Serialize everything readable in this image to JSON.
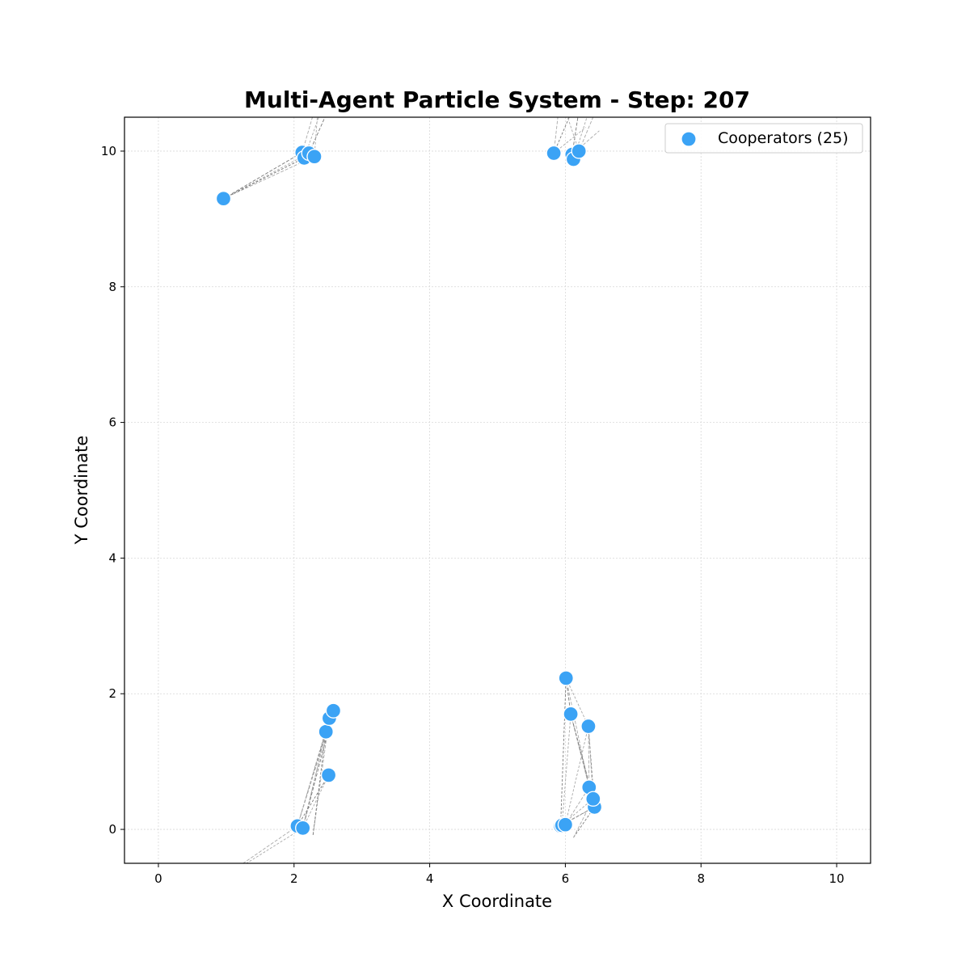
{
  "chart_data": {
    "type": "scatter",
    "title": "Multi-Agent Particle System - Step: 207",
    "xlabel": "X Coordinate",
    "ylabel": "Y Coordinate",
    "xlim": [
      -0.5,
      10.5
    ],
    "ylim": [
      -0.5,
      10.5
    ],
    "xticks": [
      0,
      2,
      4,
      6,
      8,
      10
    ],
    "yticks": [
      0,
      2,
      4,
      6,
      8,
      10
    ],
    "grid": true,
    "legend_position": "top-right",
    "series": [
      {
        "name": "Cooperators (25)",
        "color": "#3ba3f5",
        "points": [
          [
            0.96,
            9.3
          ],
          [
            2.12,
            9.98
          ],
          [
            2.15,
            9.9
          ],
          [
            2.22,
            9.97
          ],
          [
            2.3,
            9.92
          ],
          [
            5.83,
            9.97
          ],
          [
            6.1,
            9.95
          ],
          [
            6.12,
            9.88
          ],
          [
            6.2,
            10.0
          ],
          [
            2.05,
            0.05
          ],
          [
            2.13,
            0.02
          ],
          [
            2.47,
            1.44
          ],
          [
            2.52,
            1.64
          ],
          [
            2.58,
            1.75
          ],
          [
            2.51,
            0.8
          ],
          [
            6.01,
            2.23
          ],
          [
            6.08,
            1.7
          ],
          [
            6.34,
            1.52
          ],
          [
            6.35,
            0.62
          ],
          [
            6.43,
            0.33
          ],
          [
            6.41,
            0.45
          ],
          [
            5.97,
            0.08
          ],
          [
            5.93,
            0.05
          ],
          [
            5.95,
            0.06
          ],
          [
            6.0,
            0.07
          ]
        ]
      }
    ],
    "connections": [
      [
        [
          0.96,
          9.3
        ],
        [
          2.12,
          9.98
        ]
      ],
      [
        [
          0.96,
          9.3
        ],
        [
          2.22,
          9.97
        ]
      ],
      [
        [
          0.96,
          9.3
        ],
        [
          2.3,
          9.92
        ]
      ],
      [
        [
          0.96,
          9.3
        ],
        [
          2.15,
          9.9
        ]
      ],
      [
        [
          2.12,
          9.98
        ],
        [
          2.3,
          10.6
        ]
      ],
      [
        [
          2.15,
          9.9
        ],
        [
          2.4,
          10.6
        ]
      ],
      [
        [
          2.22,
          9.97
        ],
        [
          2.5,
          10.6
        ]
      ],
      [
        [
          2.3,
          9.92
        ],
        [
          2.35,
          10.6
        ]
      ],
      [
        [
          2.12,
          9.98
        ],
        [
          2.3,
          9.92
        ]
      ],
      [
        [
          2.15,
          9.9
        ],
        [
          2.22,
          9.97
        ]
      ],
      [
        [
          5.83,
          9.97
        ],
        [
          5.9,
          10.6
        ]
      ],
      [
        [
          5.83,
          9.97
        ],
        [
          6.3,
          10.35
        ]
      ],
      [
        [
          6.1,
          9.95
        ],
        [
          6.2,
          10.6
        ]
      ],
      [
        [
          6.12,
          9.88
        ],
        [
          6.35,
          10.6
        ]
      ],
      [
        [
          6.2,
          10.0
        ],
        [
          6.45,
          10.6
        ]
      ],
      [
        [
          5.83,
          9.97
        ],
        [
          6.1,
          10.6
        ]
      ],
      [
        [
          6.1,
          9.95
        ],
        [
          6.5,
          10.3
        ]
      ],
      [
        [
          6.2,
          10.0
        ],
        [
          6.0,
          10.6
        ]
      ],
      [
        [
          2.05,
          0.05
        ],
        [
          2.47,
          1.44
        ]
      ],
      [
        [
          2.05,
          0.05
        ],
        [
          2.52,
          1.64
        ]
      ],
      [
        [
          2.05,
          0.05
        ],
        [
          2.58,
          1.75
        ]
      ],
      [
        [
          2.05,
          0.05
        ],
        [
          2.51,
          0.8
        ]
      ],
      [
        [
          2.13,
          0.02
        ],
        [
          2.47,
          1.44
        ]
      ],
      [
        [
          2.13,
          0.02
        ],
        [
          2.52,
          1.64
        ]
      ],
      [
        [
          2.13,
          0.02
        ],
        [
          2.58,
          1.75
        ]
      ],
      [
        [
          2.13,
          0.02
        ],
        [
          2.51,
          0.8
        ]
      ],
      [
        [
          2.28,
          -0.08
        ],
        [
          2.52,
          1.64
        ]
      ],
      [
        [
          2.28,
          -0.08
        ],
        [
          2.47,
          1.44
        ]
      ],
      [
        [
          2.05,
          0.05
        ],
        [
          1.25,
          -0.5
        ]
      ],
      [
        [
          2.13,
          0.02
        ],
        [
          1.3,
          -0.5
        ]
      ],
      [
        [
          6.01,
          2.23
        ],
        [
          6.08,
          1.7
        ]
      ],
      [
        [
          6.01,
          2.23
        ],
        [
          6.34,
          1.52
        ]
      ],
      [
        [
          6.01,
          2.23
        ],
        [
          6.35,
          0.62
        ]
      ],
      [
        [
          6.01,
          2.23
        ],
        [
          5.93,
          0.05
        ]
      ],
      [
        [
          6.08,
          1.7
        ],
        [
          6.35,
          0.62
        ]
      ],
      [
        [
          6.08,
          1.7
        ],
        [
          6.43,
          0.33
        ]
      ],
      [
        [
          6.08,
          1.7
        ],
        [
          6.41,
          0.45
        ]
      ],
      [
        [
          6.08,
          1.7
        ],
        [
          5.95,
          0.06
        ]
      ],
      [
        [
          6.34,
          1.52
        ],
        [
          6.35,
          0.62
        ]
      ],
      [
        [
          6.34,
          1.52
        ],
        [
          6.43,
          0.33
        ]
      ],
      [
        [
          6.34,
          1.52
        ],
        [
          6.41,
          0.45
        ]
      ],
      [
        [
          6.34,
          1.52
        ],
        [
          6.0,
          0.07
        ]
      ],
      [
        [
          5.97,
          0.08
        ],
        [
          6.43,
          0.33
        ]
      ],
      [
        [
          5.93,
          0.05
        ],
        [
          6.41,
          0.45
        ]
      ],
      [
        [
          6.0,
          0.07
        ],
        [
          6.35,
          0.62
        ]
      ],
      [
        [
          6.12,
          -0.12
        ],
        [
          6.43,
          0.33
        ]
      ],
      [
        [
          6.12,
          -0.12
        ],
        [
          6.41,
          0.45
        ]
      ],
      [
        [
          5.95,
          0.06
        ],
        [
          6.43,
          0.33
        ]
      ]
    ]
  }
}
